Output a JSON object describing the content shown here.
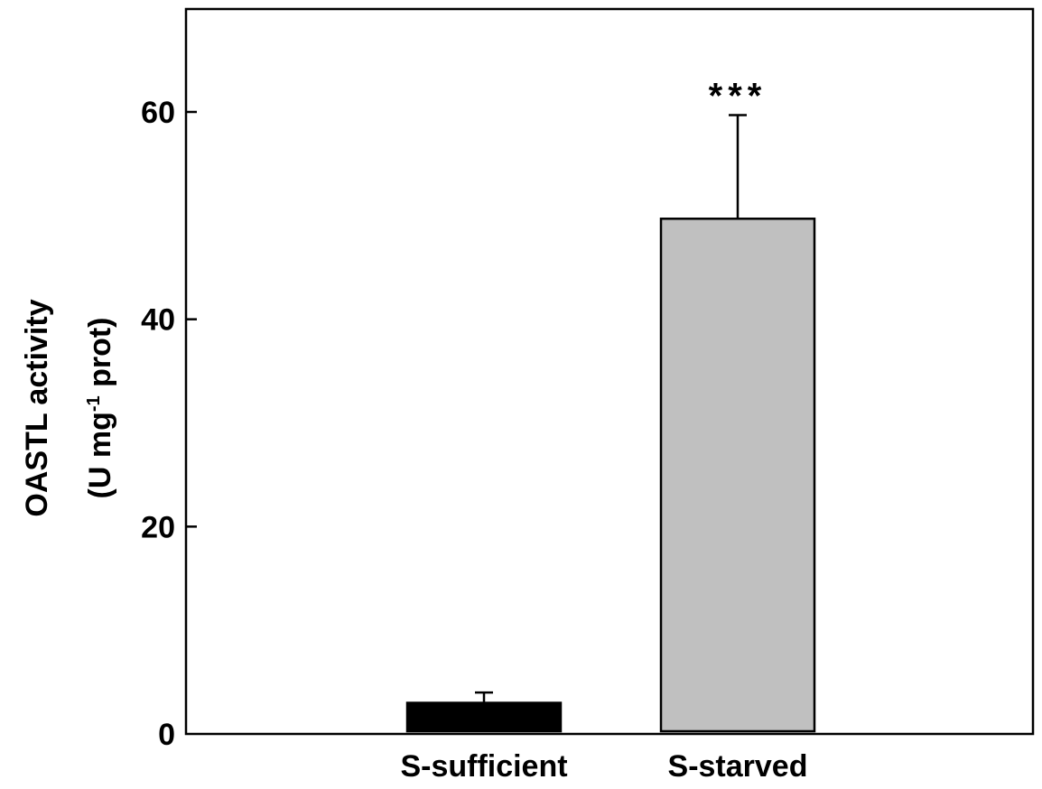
{
  "chart_data": {
    "type": "bar",
    "categories": [
      "S-sufficient",
      "S-starved"
    ],
    "values": [
      3,
      49.7
    ],
    "errors": [
      1.0,
      10.0
    ],
    "bar_colors": [
      "#000000",
      "#c0c0c0"
    ],
    "ylabel_lines": [
      "OASTL activity",
      "(U mg",
      "-1",
      " prot)"
    ],
    "ylim": [
      0,
      70
    ],
    "yticks": [
      0,
      20,
      40,
      60
    ],
    "annotations": [
      {
        "category": "S-starved",
        "text": "***"
      }
    ],
    "grid": false,
    "legend": "none"
  }
}
